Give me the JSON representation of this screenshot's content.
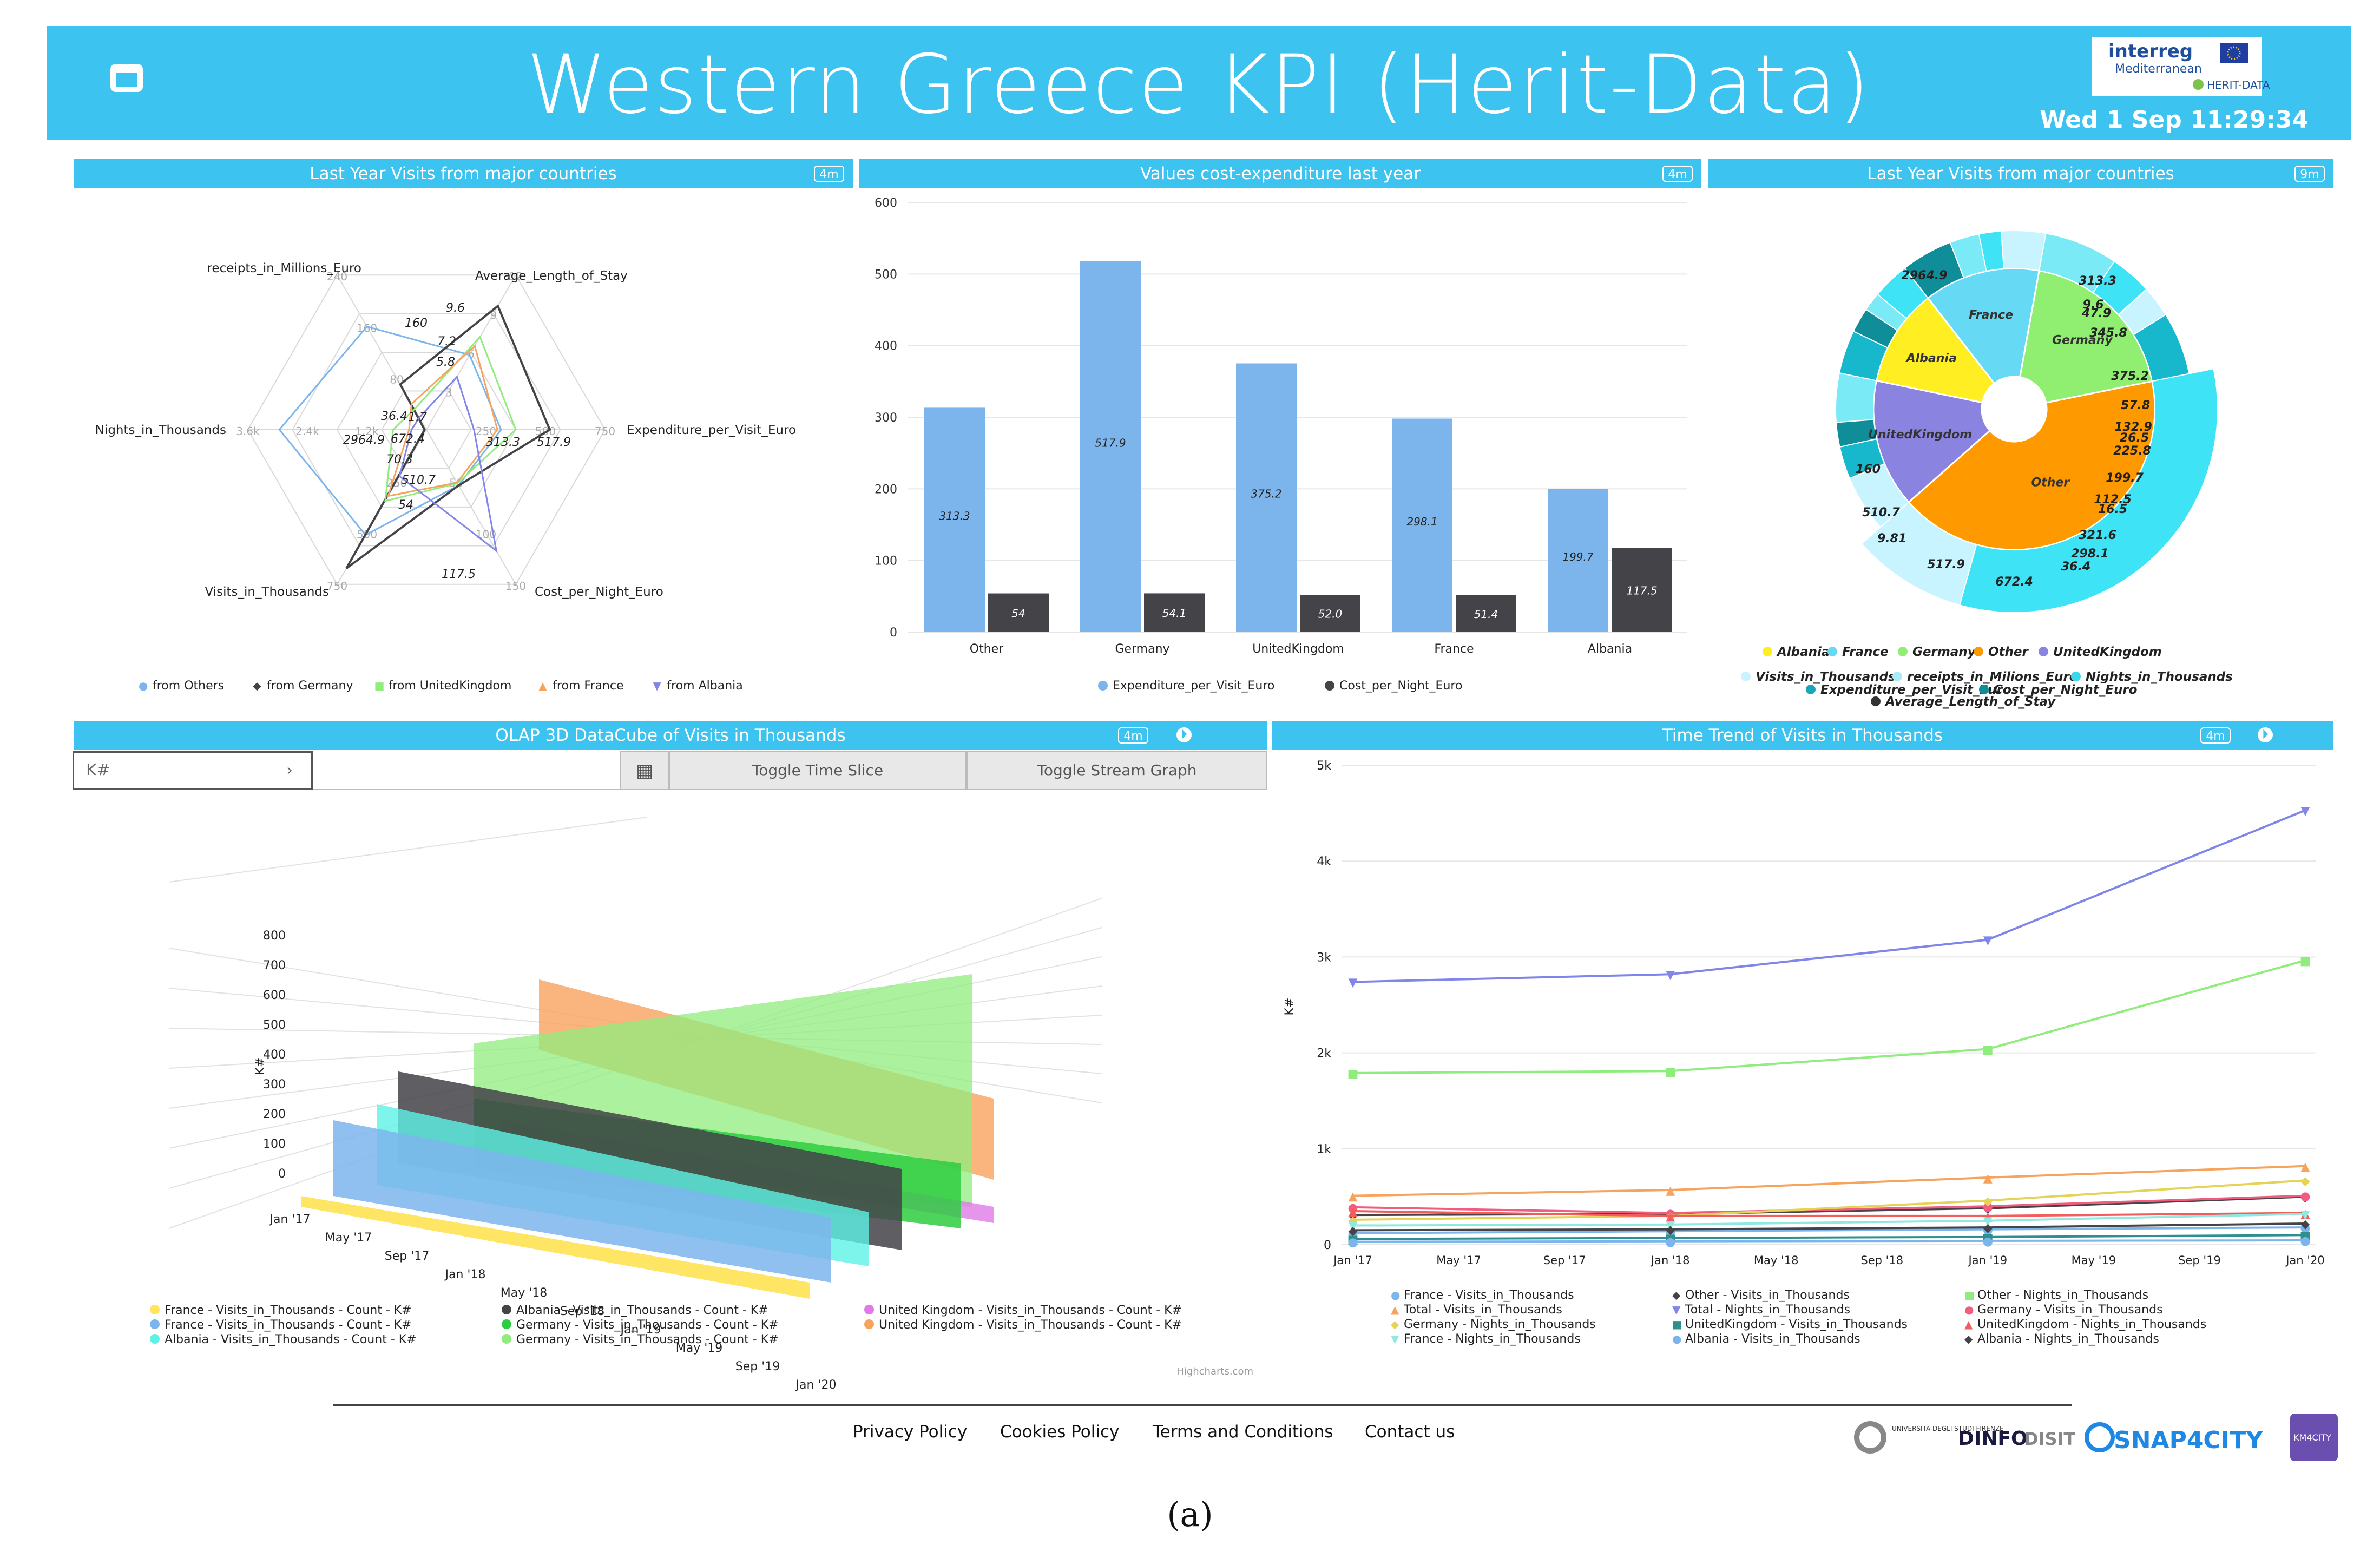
{
  "header": {
    "title": "Western Greece KPI (Herit-Data)",
    "datetime": "Wed 1 Sep 11:29:34",
    "logo": {
      "line1": "interreg",
      "line2": "Mediterranean",
      "line3": "HERIT-DATA"
    }
  },
  "widgets": {
    "radar": {
      "title": "Last Year Visits from major countries",
      "badge": "4m"
    },
    "bars": {
      "title": "Values cost-expenditure last year",
      "badge": "4m"
    },
    "sunburst": {
      "title": "Last Year Visits from major countries",
      "badge": "9m"
    },
    "cube": {
      "title": "OLAP 3D DataCube of Visits in Thousands",
      "badge": "4m",
      "info_icon": "info-icon"
    },
    "trend": {
      "title": "Time Trend of Visits in Thousands",
      "badge": "4m",
      "info_icon": "info-icon"
    }
  },
  "cube_controls": {
    "select_value": "K#",
    "select_arrow": "›",
    "calendar_icon": "calendar-icon",
    "toggle_time": "Toggle Time Slice",
    "toggle_stream": "Toggle Stream Graph"
  },
  "chart_data": [
    {
      "type": "radar",
      "axes": [
        "Average_Length_of_Stay",
        "Expenditure_per_Visit_Euro",
        "Cost_per_Night_Euro",
        "Visits_in_Thousands",
        "Nights_in_Thousands",
        "receipts_in_Millions_Euro"
      ],
      "axis_max_labels": [
        "12",
        "750",
        "150",
        "750",
        "3.6k",
        "240"
      ],
      "axis_grid_labels": [
        [
          "3",
          "6",
          "9",
          "12"
        ],
        [
          "250",
          "500",
          "750"
        ],
        [
          "50",
          "100",
          "150"
        ],
        [
          "250",
          "500",
          "750"
        ],
        [
          "1.2k",
          "2.4k",
          "3.6k"
        ],
        [
          "80",
          "160",
          "240"
        ]
      ],
      "series": [
        {
          "name": "from Others",
          "color": "#7cb5ec",
          "values": [
            5.8,
            313.3,
            54,
            510.7,
            2964.9,
            160
          ]
        },
        {
          "name": "from Germany",
          "color": "#434348",
          "values": [
            9.6,
            517.9,
            54.1,
            672.4,
            36.4,
            70.3
          ]
        },
        {
          "name": "from UnitedKingdom",
          "color": "#90ed7d",
          "values": [
            7.2,
            375.2,
            52,
            345.8,
            672.4,
            32
          ]
        },
        {
          "name": "from France",
          "color": "#f7a35c",
          "values": [
            6.5,
            298.1,
            51.4,
            321.6,
            350,
            40
          ]
        },
        {
          "name": "from Albania",
          "color": "#8085e9",
          "values": [
            4.1,
            199.7,
            117.5,
            225.8,
            300,
            19
          ]
        }
      ],
      "data_labels": [
        "9.6",
        "7.2",
        "5.8",
        "313.3",
        "517.9",
        "117.5",
        "54",
        "510.7",
        "2964.9",
        "160",
        "36.4",
        "1.7",
        "672.4",
        "70.3"
      ]
    },
    {
      "type": "bar",
      "categories": [
        "Other",
        "Germany",
        "UnitedKingdom",
        "France",
        "Albania"
      ],
      "series": [
        {
          "name": "Expenditure_per_Visit_Euro",
          "color": "#7cb5ec",
          "values": [
            313.3,
            517.9,
            375.2,
            298.1,
            199.7
          ],
          "labels": [
            "313.3",
            "517.9",
            "375.2",
            "298.1",
            "199.7"
          ]
        },
        {
          "name": "Cost_per_Night_Euro",
          "color": "#434348",
          "values": [
            54,
            54.1,
            52,
            51.4,
            117.5
          ],
          "labels": [
            "54",
            "54.1",
            "52.0",
            "51.4",
            "117.5"
          ]
        }
      ],
      "ylim": [
        0,
        600
      ],
      "yticks": [
        "0",
        "100",
        "200",
        "300",
        "400",
        "500",
        "600"
      ]
    },
    {
      "type": "sunburst",
      "center_ring": [
        {
          "name": "Other",
          "value": 2964.9,
          "color": "#ff9900"
        },
        {
          "name": "UnitedKingdom",
          "value": 1050,
          "color": "#8a84e0"
        },
        {
          "name": "Albania",
          "value": 800,
          "color": "#ffee22"
        },
        {
          "name": "France",
          "value": 950,
          "color": "#66d9f5"
        },
        {
          "name": "Germany",
          "value": 1350,
          "color": "#90ee70"
        }
      ],
      "outer_labels": [
        "2964.9",
        "313.3",
        "9.6",
        "47.9",
        "345.8",
        "375.2",
        "57.8",
        "132.9",
        "26.5",
        "225.8",
        "199.7",
        "112.5",
        "16.5",
        "321.6",
        "298.1",
        "36.4",
        "672.4",
        "517.9",
        "9.81",
        "510.7",
        "160"
      ],
      "legend": [
        "Albania",
        "France",
        "Germany",
        "Other",
        "UnitedKingdom",
        "Visits_in_Thousands",
        "receipts_in_Milions_Euro",
        "Nights_in_Thousands",
        "Expenditure_per_Visit_Euro",
        "Cost_per_Night_Euro",
        "Average_Length_of_Stay"
      ],
      "legend_colors": [
        "#ffee22",
        "#66d9f5",
        "#90ee70",
        "#ff9900",
        "#8a84e0",
        "#c8f4ff",
        "#a8ecf7",
        "#3ad8ee",
        "#18a8bb",
        "#0f8d99",
        "#333333"
      ]
    },
    {
      "type": "area3d",
      "ylabel": "K#",
      "yticks": [
        "0",
        "100",
        "200",
        "300",
        "400",
        "500",
        "600",
        "700",
        "800"
      ],
      "categories": [
        "Jan '17",
        "May '17",
        "Sep '17",
        "Jan '18",
        "May '18",
        "Sep '18",
        "Jan '19",
        "May '19",
        "Sep '19",
        "Jan '20"
      ],
      "series": [
        {
          "name": "France - Visits_in_Thousands - Count - K#",
          "color": "#ffe45c"
        },
        {
          "name": "France - Visits_in_Thousands - Count - K#",
          "color": "#7cb5ec"
        },
        {
          "name": "Albania - Visits_in_Thousands - Count - K#",
          "color": "#5ef2e6"
        },
        {
          "name": "Albania - Visits_in_Thousands - Count - K#",
          "color": "#434348"
        },
        {
          "name": "Germany - Visits_in_Thousands - Count - K#",
          "color": "#2ecc40"
        },
        {
          "name": "Germany - Visits_in_Thousands - Count - K#",
          "color": "#90ed7d"
        },
        {
          "name": "United Kingdom - Visits_in_Thousands - Count - K#",
          "color": "#e07ae8"
        },
        {
          "name": "United Kingdom - Visits_in_Thousands - Count - K#",
          "color": "#f7a35c"
        }
      ],
      "credit": "Highcharts.com"
    },
    {
      "type": "line",
      "ylabel": "K#",
      "ylim": [
        0,
        5000
      ],
      "yticks": [
        "0",
        "1k",
        "2k",
        "3k",
        "4k",
        "5k"
      ],
      "xticks": [
        "Jan '17",
        "May '17",
        "Sep '17",
        "Jan '18",
        "May '18",
        "Sep '18",
        "Jan '19",
        "May '19",
        "Sep '19",
        "Jan '20"
      ],
      "x": [
        "Jan '17",
        "Jan '18",
        "Jan '19",
        "Jan '20"
      ],
      "series": [
        {
          "name": "France - Visits_in_Thousands",
          "color": "#7cb5ec",
          "marker": "●",
          "values": [
            120,
            140,
            160,
            180
          ]
        },
        {
          "name": "Other - Visits_in_Thousands",
          "color": "#434348",
          "marker": "◆",
          "values": [
            310,
            320,
            380,
            500
          ]
        },
        {
          "name": "Other - Nights_in_Thousands",
          "color": "#90ed7d",
          "marker": "■",
          "values": [
            1790,
            1810,
            2040,
            2965
          ]
        },
        {
          "name": "Total - Visits_in_Thousands",
          "color": "#f7a35c",
          "marker": "▲",
          "values": [
            510,
            570,
            700,
            820
          ]
        },
        {
          "name": "Total - Nights_in_Thousands",
          "color": "#8085e9",
          "marker": "▼",
          "values": [
            2740,
            2820,
            3180,
            4530
          ]
        },
        {
          "name": "Germany - Visits_in_Thousands",
          "color": "#f15c80",
          "marker": "●",
          "values": [
            390,
            330,
            400,
            510
          ]
        },
        {
          "name": "Germany - Nights_in_Thousands",
          "color": "#e4d354",
          "marker": "◆",
          "values": [
            260,
            300,
            460,
            670
          ]
        },
        {
          "name": "UnitedKingdom - Visits_in_Thousands",
          "color": "#2b908f",
          "marker": "■",
          "values": [
            60,
            70,
            80,
            100
          ]
        },
        {
          "name": "UnitedKingdom - Nights_in_Thousands",
          "color": "#f45b5b",
          "marker": "▲",
          "values": [
            350,
            300,
            300,
            330
          ]
        },
        {
          "name": "France - Nights_in_Thousands",
          "color": "#91e8e1",
          "marker": "▼",
          "values": [
            200,
            210,
            250,
            320
          ]
        },
        {
          "name": "Albania - Visits_in_Thousands",
          "color": "#7cb5ec",
          "marker": "●",
          "values": [
            30,
            35,
            40,
            45
          ]
        },
        {
          "name": "Albania - Nights_in_Thousands",
          "color": "#434348",
          "marker": "◆",
          "values": [
            150,
            160,
            180,
            220
          ]
        }
      ]
    }
  ],
  "footer": {
    "links": [
      "Privacy Policy",
      "Cookies Policy",
      "Terms and Conditions",
      "Contact us"
    ],
    "logos": {
      "unifi": "UNIVERSITÀ DEGLI STUDI FIRENZE",
      "dinfo": "DINFO",
      "disit": "DISIT",
      "snap": "SNAP4CITY",
      "km": "KM4CITY"
    }
  },
  "caption": "(a)"
}
